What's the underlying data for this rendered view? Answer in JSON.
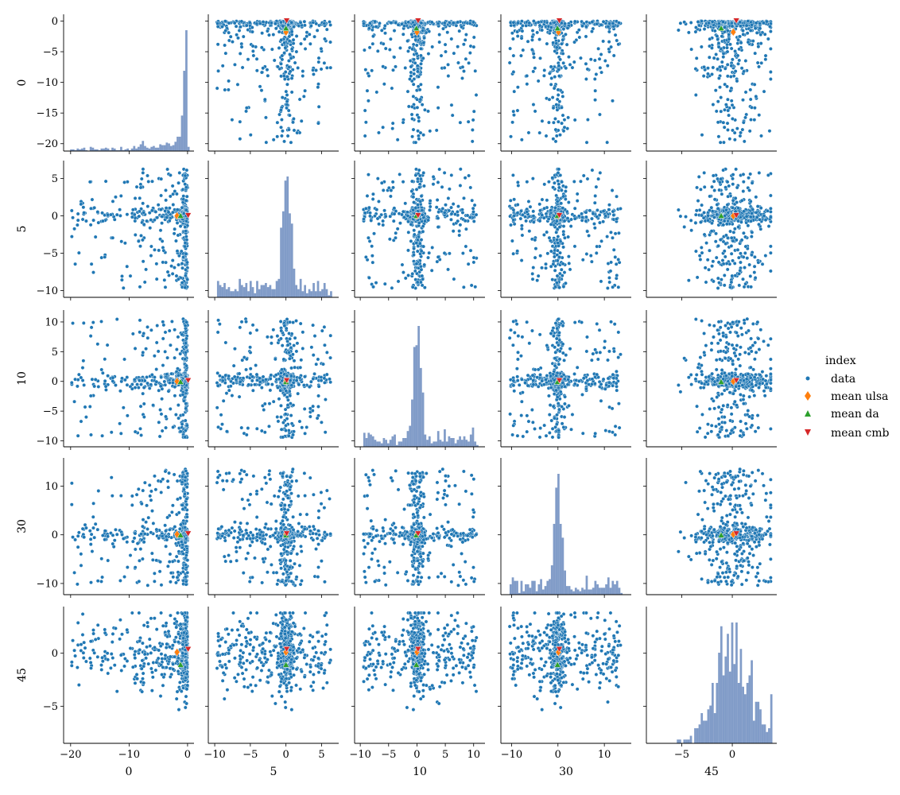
{
  "legend": {
    "title": "index",
    "items": [
      {
        "label": "data",
        "marker": "dot",
        "color": "#1f77b4"
      },
      {
        "label": "mean ulsa",
        "marker": "diamond",
        "color": "#ff7f0e"
      },
      {
        "label": "mean da",
        "marker": "triangle-up",
        "color": "#2ca02c"
      },
      {
        "label": "mean cmb",
        "marker": "triangle-down",
        "color": "#d62728"
      }
    ]
  },
  "chart_data": {
    "type": "scatter",
    "subtype": "pairplot",
    "variables": [
      "0",
      "5",
      "10",
      "30",
      "45"
    ],
    "axis_ranges": [
      [
        -21.2,
        1.1
      ],
      [
        -10.9,
        7.4
      ],
      [
        -11,
        12
      ],
      [
        -12.3,
        15.8
      ],
      [
        -8.5,
        4.4
      ]
    ],
    "ticks": [
      [
        -20,
        -10,
        0
      ],
      [
        -10,
        -5,
        0,
        5
      ],
      [
        -10,
        -5,
        0,
        5,
        10
      ],
      [
        -10,
        0,
        10
      ],
      [
        -5,
        0
      ]
    ],
    "y_ticks": [
      [
        -20,
        -15,
        -10,
        -5,
        0
      ],
      [
        -10,
        -5,
        0,
        5
      ],
      [
        -10,
        -5,
        0,
        5,
        10
      ],
      [
        -10,
        0,
        10
      ],
      [
        -5,
        0
      ]
    ],
    "diagonal": "histogram",
    "means": {
      "mean ulsa": [
        -1.8,
        0.0,
        0.0,
        0.1,
        0.1
      ],
      "mean da": [
        -1.2,
        0.0,
        -0.1,
        -0.1,
        -1.1
      ],
      "mean cmb": [
        0.1,
        0.1,
        0.2,
        0.3,
        0.4
      ]
    },
    "series_colors": {
      "data": "#1f77b4",
      "mean ulsa": "#ff7f0e",
      "mean da": "#2ca02c",
      "mean cmb": "#d62728"
    },
    "grid": false,
    "legend_position": "right"
  }
}
